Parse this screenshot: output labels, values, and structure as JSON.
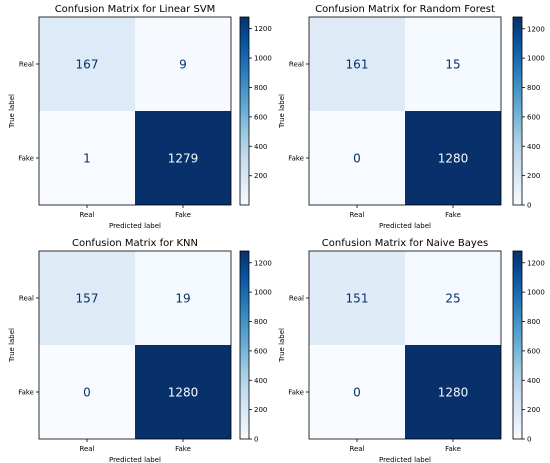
{
  "chart_data": [
    {
      "type": "heatmap",
      "title": "Confusion Matrix for Linear SVM",
      "xlabel": "Predicted label",
      "ylabel": "True label",
      "row_labels": [
        "Real",
        "Fake"
      ],
      "col_labels": [
        "Real",
        "Fake"
      ],
      "values": [
        [
          167,
          9
        ],
        [
          1,
          1279
        ]
      ],
      "colormap": "Blues",
      "colorbar_range": [
        1,
        1279
      ],
      "colorbar_ticks": [
        200,
        400,
        600,
        800,
        1000,
        1200
      ]
    },
    {
      "type": "heatmap",
      "title": "Confusion Matrix for Random Forest",
      "xlabel": "Predicted label",
      "ylabel": "True label",
      "row_labels": [
        "Real",
        "Fake"
      ],
      "col_labels": [
        "Real",
        "Fake"
      ],
      "values": [
        [
          161,
          15
        ],
        [
          0,
          1280
        ]
      ],
      "colormap": "Blues",
      "colorbar_range": [
        0,
        1280
      ],
      "colorbar_ticks": [
        0,
        200,
        400,
        600,
        800,
        1000,
        1200
      ]
    },
    {
      "type": "heatmap",
      "title": "Confusion Matrix for KNN",
      "xlabel": "Predicted label",
      "ylabel": "True label",
      "row_labels": [
        "Real",
        "Fake"
      ],
      "col_labels": [
        "Real",
        "Fake"
      ],
      "values": [
        [
          157,
          19
        ],
        [
          0,
          1280
        ]
      ],
      "colormap": "Blues",
      "colorbar_range": [
        0,
        1280
      ],
      "colorbar_ticks": [
        0,
        200,
        400,
        600,
        800,
        1000,
        1200
      ]
    },
    {
      "type": "heatmap",
      "title": "Confusion Matrix for Naive Bayes",
      "xlabel": "Predicted label",
      "ylabel": "True label",
      "row_labels": [
        "Real",
        "Fake"
      ],
      "col_labels": [
        "Real",
        "Fake"
      ],
      "values": [
        [
          151,
          25
        ],
        [
          0,
          1280
        ]
      ],
      "colormap": "Blues",
      "colorbar_range": [
        0,
        1280
      ],
      "colorbar_ticks": [
        0,
        200,
        400,
        600,
        800,
        1000,
        1200
      ]
    }
  ]
}
